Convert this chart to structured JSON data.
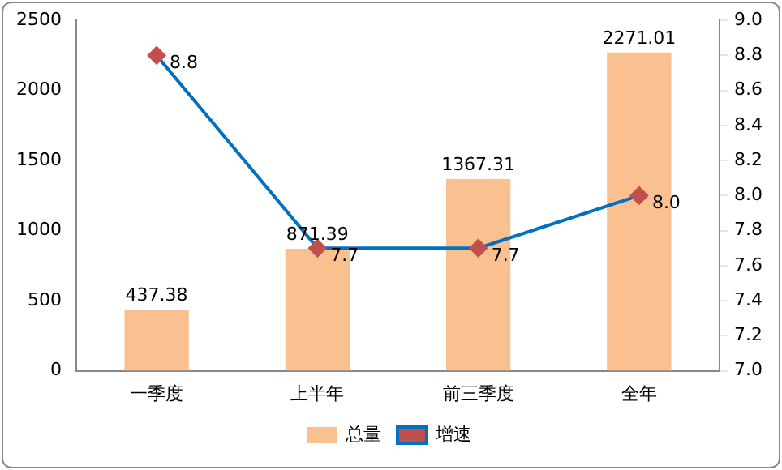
{
  "chart_data": {
    "type": "bar",
    "categories": [
      "一季度",
      "上半年",
      "前三季度",
      "全年"
    ],
    "series": [
      {
        "name": "总量",
        "type": "bar",
        "color": "#fac090",
        "values": [
          437.38,
          871.39,
          1367.31,
          2271.01
        ],
        "value_labels": [
          "437.38",
          "871.39",
          "1367.31",
          "2271.01"
        ]
      },
      {
        "name": "增速",
        "type": "line",
        "axis": "y2",
        "color": "#0070c0",
        "colors": [
          "#c0504d",
          "#c0504d",
          "#c0504d",
          "#c0504d"
        ],
        "values": [
          8.8,
          7.7,
          7.7,
          8.0
        ],
        "value_labels": [
          "8.8",
          "7.7",
          "7.7",
          "8.0"
        ]
      }
    ],
    "ylim": [
      0,
      2500
    ],
    "yticks": [
      0,
      500,
      1000,
      1500,
      2000,
      2500
    ],
    "y2lim": [
      7,
      9
    ],
    "y2ticks": [
      {
        "value": 7,
        "label": "7.0"
      },
      {
        "value": 7.2,
        "label": "7.2"
      },
      {
        "value": 7.4,
        "label": "7.4"
      },
      {
        "value": 7.6,
        "label": "7.6"
      },
      {
        "value": 7.8,
        "label": "7.8"
      },
      {
        "value": 8,
        "label": "8.0"
      },
      {
        "value": 8.2,
        "label": "8.2"
      },
      {
        "value": 8.4,
        "label": "8.4"
      },
      {
        "value": 8.6,
        "label": "8.6"
      },
      {
        "value": 8.8,
        "label": "8.8"
      },
      {
        "value": 9,
        "label": "9.0"
      }
    ],
    "grid": false,
    "legend": "bottom",
    "marker": "diamond",
    "line_style": "solid"
  }
}
